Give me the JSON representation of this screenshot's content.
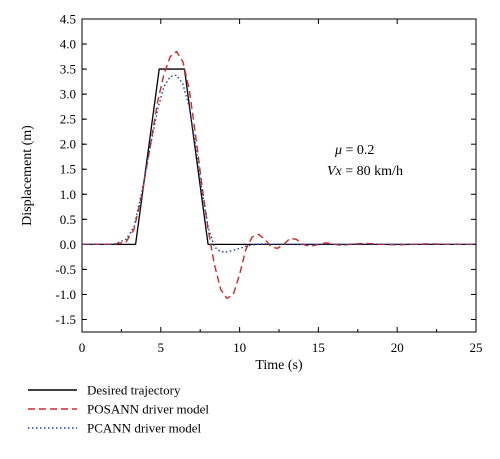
{
  "chart_data": {
    "type": "line",
    "xlabel": "Time (s)",
    "ylabel": "Displacement (m)",
    "xlim": [
      0,
      25
    ],
    "ylim": [
      -1.75,
      4.5
    ],
    "xticks": [
      0,
      5,
      10,
      15,
      20,
      25
    ],
    "yticks": [
      -1.5,
      -1.0,
      -0.5,
      0.0,
      0.5,
      1.0,
      1.5,
      2.0,
      2.5,
      3.0,
      3.5,
      4.0,
      4.5
    ],
    "grid": false,
    "legend_position": "bottom-left",
    "annotations": [
      {
        "prefix": "μ",
        "text": " = 0.2"
      },
      {
        "prefix": "Vx",
        "text": " = 80 km/h"
      }
    ],
    "series": [
      {
        "name": "Desired trajectory",
        "color": "#000000",
        "style": "solid",
        "x": [
          0,
          3.4,
          4.9,
          6.5,
          8.0,
          25
        ],
        "y": [
          0,
          0,
          3.5,
          3.5,
          0,
          0
        ]
      },
      {
        "name": "POSANN driver model",
        "color": "#d62728",
        "style": "dashed",
        "x": [
          0,
          2.0,
          2.8,
          3.3,
          3.8,
          4.3,
          4.8,
          5.2,
          5.6,
          6.0,
          6.4,
          6.8,
          7.2,
          7.6,
          8.0,
          8.4,
          8.8,
          9.2,
          9.6,
          10.0,
          10.4,
          10.8,
          11.2,
          11.6,
          12.0,
          12.4,
          12.8,
          13.2,
          13.6,
          14.0,
          14.5,
          15.0,
          15.5,
          16.0,
          16.5,
          17.0,
          18.0,
          19.0,
          20.0,
          21.0,
          22.0,
          23.0,
          24.0,
          25.0
        ],
        "y": [
          0,
          0,
          0.05,
          0.3,
          1.0,
          1.9,
          2.85,
          3.4,
          3.75,
          3.85,
          3.65,
          3.1,
          2.2,
          1.2,
          0.3,
          -0.4,
          -0.9,
          -1.08,
          -1.0,
          -0.6,
          -0.1,
          0.15,
          0.2,
          0.1,
          -0.05,
          -0.08,
          0.0,
          0.12,
          0.1,
          0.0,
          -0.04,
          0.0,
          0.03,
          0.0,
          -0.02,
          0.0,
          0.02,
          0.0,
          -0.01,
          0.0,
          0.01,
          0.0,
          0.0,
          0.0
        ]
      },
      {
        "name": "PCANN driver model",
        "color": "#1f3fb4",
        "style": "dotted",
        "x": [
          0,
          2.0,
          2.8,
          3.3,
          3.8,
          4.3,
          4.8,
          5.2,
          5.6,
          6.0,
          6.4,
          6.8,
          7.2,
          7.6,
          8.0,
          8.4,
          8.8,
          9.2,
          9.6,
          10.0,
          10.5,
          11.0,
          11.5,
          12.0,
          13.0,
          14.0,
          16.0,
          18.0,
          20.0,
          22.0,
          25.0
        ],
        "y": [
          0,
          0,
          0.1,
          0.35,
          1.05,
          1.9,
          2.7,
          3.15,
          3.35,
          3.38,
          3.2,
          2.75,
          2.0,
          1.1,
          0.35,
          -0.05,
          -0.15,
          -0.15,
          -0.12,
          -0.08,
          -0.03,
          0.0,
          0.01,
          0.0,
          0.0,
          0.0,
          0.0,
          0.0,
          0.0,
          0.0,
          0.0
        ]
      }
    ]
  }
}
